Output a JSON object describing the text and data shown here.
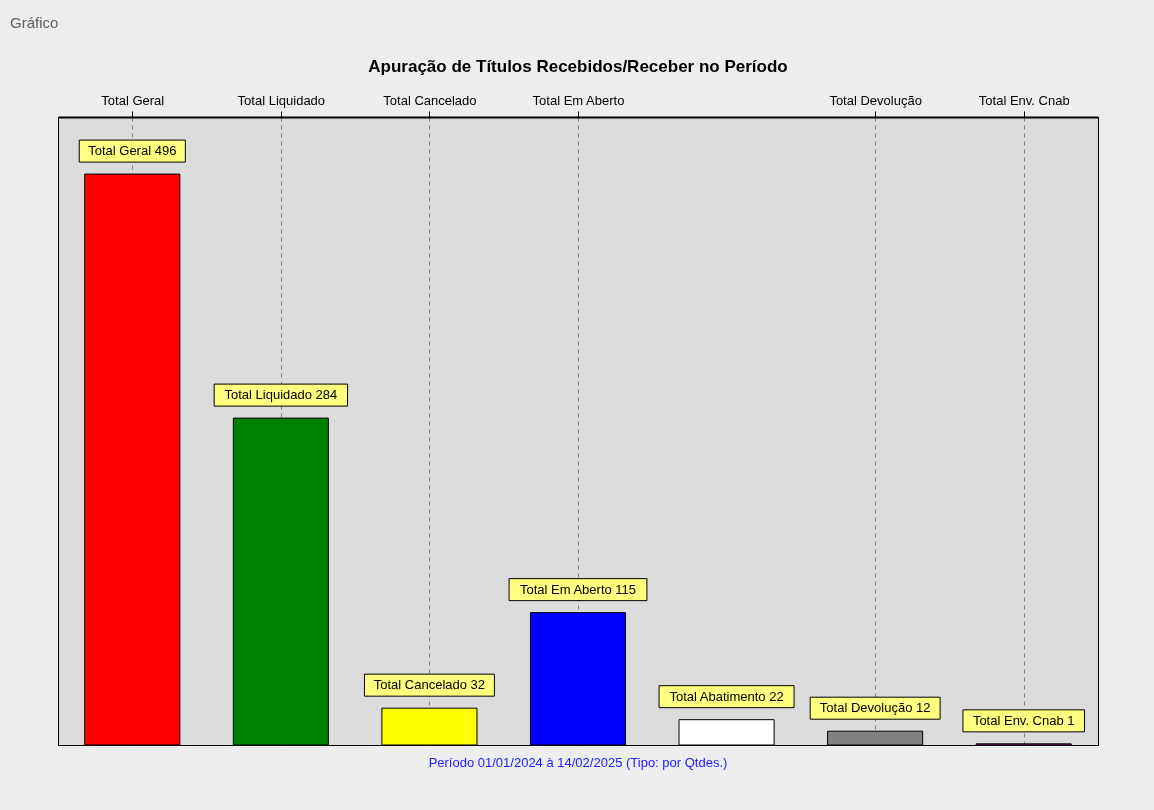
{
  "chart_data": {
    "type": "bar",
    "title": "Apuração de Títulos Recebidos/Receber no Período",
    "categories": [
      "Total Geral",
      "Total Liquidado",
      "Total Cancelado",
      "Total Em Aberto",
      null,
      "Total Devolução",
      "Total Env. Cnab"
    ],
    "values": [
      496,
      284,
      32,
      115,
      22,
      12,
      1
    ],
    "colors": [
      "#ff0000",
      "#008000",
      "#ffff00",
      "#0000ff",
      "#ffffff",
      "#808080",
      "#c000c0"
    ],
    "value_labels": [
      "Total Geral  496",
      "Total Liquidado  284",
      "Total Cancelado  32",
      "Total Em Aberto  115",
      "Total Abatimento  22",
      "Total Devolução  12",
      "Total Env. Cnab  1"
    ],
    "grid": "x",
    "tick_labels": "x",
    "annotations": [
      "Gráfico",
      "Período 01/01/2024 à 14/02/2025  (Tipo: por Qtdes.)"
    ]
  }
}
